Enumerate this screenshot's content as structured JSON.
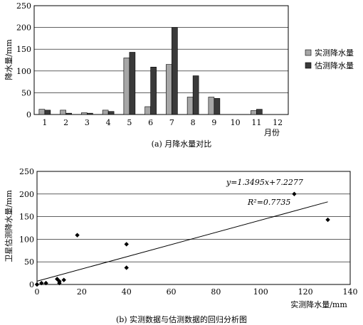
{
  "chart_data": [
    {
      "type": "bar",
      "caption": "(a) 月降水量对比",
      "ylabel": "降水量/mm",
      "xlabel": "月份",
      "categories": [
        "1",
        "2",
        "3",
        "4",
        "5",
        "6",
        "7",
        "8",
        "9",
        "10",
        "11",
        "12"
      ],
      "ylim": [
        0,
        250
      ],
      "yticks": [
        "0",
        "50",
        "100",
        "150",
        "200",
        "250"
      ],
      "legend_position": "right",
      "series": [
        {
          "name": "实测降水量",
          "color": "#a6a6a6",
          "values": [
            12,
            10,
            4,
            10,
            130,
            18,
            115,
            40,
            40,
            0,
            9,
            0
          ]
        },
        {
          "name": "估测降水量",
          "color": "#3a3a3a",
          "values": [
            10,
            3,
            3,
            7,
            143,
            109,
            200,
            89,
            37,
            0,
            12,
            0
          ]
        }
      ]
    },
    {
      "type": "scatter",
      "caption": "(b) 实测数据与估测数据的回归分析图",
      "xlabel": "实测降水量/mm",
      "ylabel": "卫星估测降水量/mm",
      "xlim": [
        0,
        140
      ],
      "ylim": [
        0,
        250
      ],
      "xticks": [
        "0",
        "20",
        "40",
        "60",
        "80",
        "100",
        "120",
        "140"
      ],
      "yticks": [
        "0",
        "50",
        "100",
        "150",
        "200",
        "250"
      ],
      "points": [
        {
          "x": 0,
          "y": 0
        },
        {
          "x": 2,
          "y": 3
        },
        {
          "x": 4,
          "y": 3
        },
        {
          "x": 9,
          "y": 12
        },
        {
          "x": 10,
          "y": 7
        },
        {
          "x": 10,
          "y": 3
        },
        {
          "x": 12,
          "y": 10
        },
        {
          "x": 18,
          "y": 109
        },
        {
          "x": 40,
          "y": 89
        },
        {
          "x": 40,
          "y": 37
        },
        {
          "x": 115,
          "y": 200
        },
        {
          "x": 130,
          "y": 143
        }
      ],
      "fit": {
        "slope": 1.3495,
        "intercept": 7.2277,
        "x_range": [
          0,
          130
        ]
      },
      "equation": "y=1.3495x+7.2277",
      "r2": "R²=0.7735"
    }
  ]
}
